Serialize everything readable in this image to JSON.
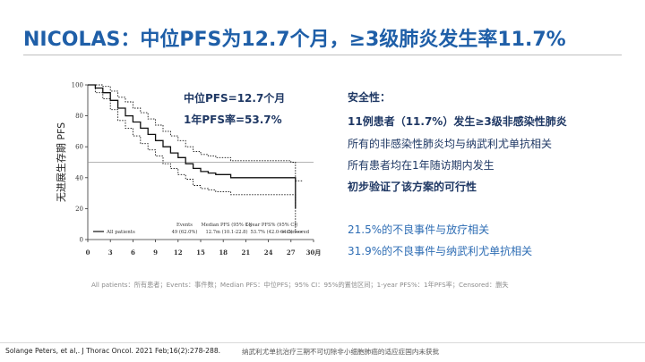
{
  "slide": {
    "title": "NICOLAS：中位PFS为12.7个月，≥3级肺炎发生率11.7%"
  },
  "overlay": {
    "median_pfs": "中位PFS=12.7个月",
    "one_year_pfs": "1年PFS率=53.7%"
  },
  "right_panel": {
    "heading": "安全性：",
    "lines": [
      "11例患者（11.7%）发生≥3级非感染性肺炎",
      "所有的非感染性肺炎均与纳武利尤单抗相关",
      "所有患者均在1年随访期内发生",
      "初步验证了该方案的可行性",
      "21.5%的不良事件与放疗相关",
      "31.9%的不良事件与纳武利尤单抗相关"
    ]
  },
  "caption": "All patients：所有患者；Events：事件数；Median PFS：中位PFS；95% CI：95%的置信区间；1-year PFS%：1年PFS率；Censored：删失",
  "footer": {
    "reference": "Solange Peters, et al,. J Thorac Oncol. 2021 Feb;16(2):278-288.",
    "note": "纳武利尤单抗治疗三期不可切除非小细胞肺癌的适应症国内未获批"
  },
  "chart_data": {
    "type": "line",
    "ylabel": "无进展生存期 PFS",
    "xlabel": "30月",
    "xlim": [
      0,
      30
    ],
    "ylim": [
      0,
      100
    ],
    "x_ticks": [
      "0",
      "3",
      "6",
      "9",
      "12",
      "15",
      "18",
      "21",
      "24",
      "27",
      "30月"
    ],
    "x_tick_values": [
      0,
      3,
      6,
      9,
      12,
      15,
      18,
      21,
      24,
      27,
      30
    ],
    "y_ticks": [
      "0",
      "20",
      "40",
      "60",
      "80",
      "100"
    ],
    "y_tick_values": [
      0,
      20,
      40,
      60,
      80,
      100
    ],
    "reference_line_y": 50,
    "series": [
      {
        "name": "All patients",
        "style": "solid",
        "points": [
          [
            0,
            100
          ],
          [
            1,
            98
          ],
          [
            2,
            95
          ],
          [
            3,
            90
          ],
          [
            4,
            85
          ],
          [
            5,
            80
          ],
          [
            6,
            76
          ],
          [
            7,
            72
          ],
          [
            8,
            68
          ],
          [
            9,
            64
          ],
          [
            10,
            60
          ],
          [
            11,
            56
          ],
          [
            12,
            53
          ],
          [
            13,
            49
          ],
          [
            14,
            46
          ],
          [
            15,
            44
          ],
          [
            16,
            43
          ],
          [
            17,
            42
          ],
          [
            18,
            42
          ],
          [
            19,
            40
          ],
          [
            20,
            40
          ],
          [
            21,
            40
          ],
          [
            22,
            40
          ],
          [
            23,
            40
          ],
          [
            24,
            40
          ],
          [
            25,
            40
          ],
          [
            26,
            40
          ],
          [
            27,
            40
          ],
          [
            27.6,
            20
          ]
        ]
      },
      {
        "style": "dotted",
        "points": [
          [
            0,
            100
          ],
          [
            1,
            100
          ],
          [
            2,
            99
          ],
          [
            3,
            96
          ],
          [
            4,
            92
          ],
          [
            5,
            89
          ],
          [
            6,
            85
          ],
          [
            7,
            82
          ],
          [
            8,
            78
          ],
          [
            9,
            74
          ],
          [
            10,
            70
          ],
          [
            11,
            67
          ],
          [
            12,
            64
          ],
          [
            13,
            60
          ],
          [
            14,
            57
          ],
          [
            15,
            55
          ],
          [
            16,
            54
          ],
          [
            17,
            53
          ],
          [
            18,
            53
          ],
          [
            19,
            51
          ],
          [
            20,
            51
          ],
          [
            21,
            51
          ],
          [
            22,
            51
          ],
          [
            23,
            51
          ],
          [
            24,
            51
          ],
          [
            25,
            51
          ],
          [
            26,
            51
          ],
          [
            27,
            50
          ],
          [
            27.6,
            38
          ],
          [
            28.5,
            38
          ]
        ]
      },
      {
        "style": "dotted",
        "points": [
          [
            0,
            100
          ],
          [
            1,
            95
          ],
          [
            2,
            91
          ],
          [
            3,
            84
          ],
          [
            4,
            77
          ],
          [
            5,
            72
          ],
          [
            6,
            67
          ],
          [
            7,
            62
          ],
          [
            8,
            58
          ],
          [
            9,
            54
          ],
          [
            10,
            49
          ],
          [
            11,
            46
          ],
          [
            12,
            42
          ],
          [
            13,
            39
          ],
          [
            14,
            35
          ],
          [
            15,
            33
          ],
          [
            16,
            32
          ],
          [
            17,
            31
          ],
          [
            18,
            31
          ],
          [
            19,
            29
          ],
          [
            20,
            29
          ],
          [
            21,
            29
          ],
          [
            22,
            29
          ],
          [
            23,
            29
          ],
          [
            24,
            29
          ],
          [
            25,
            29
          ],
          [
            26,
            29
          ],
          [
            27,
            29
          ],
          [
            27.6,
            5
          ],
          [
            28.5,
            5
          ]
        ]
      }
    ],
    "table": {
      "series_label": "All patients",
      "headers": [
        "Events",
        "Median PFS (95% CI)",
        "1-year PFS% (95% CI)"
      ],
      "values": [
        "49 (62.0%)",
        "12.7m (10.1-22.8)",
        "53.7% (42.0-64.0)"
      ],
      "censored_label": "+ Censored"
    }
  }
}
